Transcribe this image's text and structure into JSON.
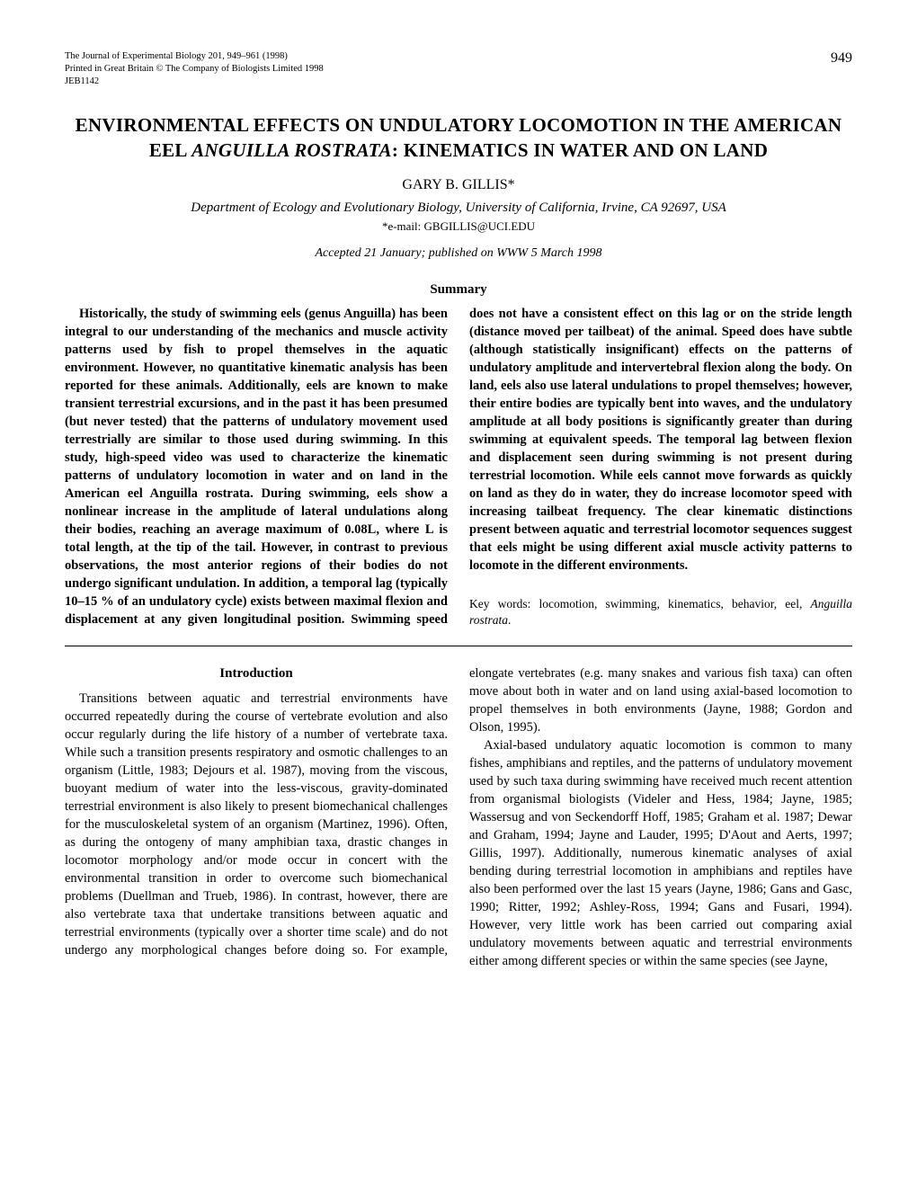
{
  "journal_header": {
    "line1": "The Journal of Experimental Biology 201, 949–961 (1998)",
    "line2": "Printed in Great Britain © The Company of Biologists Limited 1998",
    "line3": "JEB1142"
  },
  "page_number": "949",
  "title_line1": "ENVIRONMENTAL EFFECTS ON UNDULATORY LOCOMOTION IN THE AMERICAN",
  "title_line2_prefix": "EEL ",
  "title_line2_italic": "ANGUILLA ROSTRATA",
  "title_line2_suffix": ": KINEMATICS IN WATER AND ON LAND",
  "author": "GARY B. GILLIS*",
  "affiliation": "Department of Ecology and Evolutionary Biology, University of California, Irvine, CA 92697, USA",
  "email": "*e-mail: GBGILLIS@UCI.EDU",
  "accepted": "Accepted 21 January; published on WWW 5 March 1998",
  "summary_heading": "Summary",
  "summary_para": "Historically, the study of swimming eels (genus Anguilla) has been integral to our understanding of the mechanics and muscle activity patterns used by fish to propel themselves in the aquatic environment. However, no quantitative kinematic analysis has been reported for these animals. Additionally, eels are known to make transient terrestrial excursions, and in the past it has been presumed (but never tested) that the patterns of undulatory movement used terrestrially are similar to those used during swimming. In this study, high-speed video was used to characterize the kinematic patterns of undulatory locomotion in water and on land in the American eel Anguilla rostrata. During swimming, eels show a nonlinear increase in the amplitude of lateral undulations along their bodies, reaching an average maximum of 0.08L, where L is total length, at the tip of the tail. However, in contrast to previous observations, the most anterior regions of their bodies do not undergo significant undulation. In addition, a temporal lag (typically 10–15 % of an undulatory cycle) exists between maximal flexion and displacement at any given longitudinal position. Swimming speed does not have a consistent effect on this lag or on the stride length (distance moved per tailbeat) of the animal. Speed does have subtle (although statistically insignificant) effects on the patterns of undulatory amplitude and intervertebral flexion along the body. On land, eels also use lateral undulations to propel themselves; however, their entire bodies are typically bent into waves, and the undulatory amplitude at all body positions is significantly greater than during swimming at equivalent speeds. The temporal lag between flexion and displacement seen during swimming is not present during terrestrial locomotion. While eels cannot move forwards as quickly on land as they do in water, they do increase locomotor speed with increasing tailbeat frequency. The clear kinematic distinctions present between aquatic and terrestrial locomotor sequences suggest that eels might be using different axial muscle activity patterns to locomote in the different environments.",
  "keywords_prefix": "Key words: locomotion, swimming, kinematics, behavior, eel, ",
  "keywords_italic": "Anguilla rostrata",
  "keywords_suffix": ".",
  "intro_heading": "Introduction",
  "intro_p1": "Transitions between aquatic and terrestrial environments have occurred repeatedly during the course of vertebrate evolution and also occur regularly during the life history of a number of vertebrate taxa. While such a transition presents respiratory and osmotic challenges to an organism (Little, 1983; Dejours et al. 1987), moving from the viscous, buoyant medium of water into the less-viscous, gravity-dominated terrestrial environment is also likely to present biomechanical challenges for the musculoskeletal system of an organism (Martinez, 1996). Often, as during the ontogeny of many amphibian taxa, drastic changes in locomotor morphology and/or mode occur in concert with the environmental transition in order to overcome such biomechanical problems (Duellman and Trueb, 1986). In contrast, however, there are also vertebrate taxa that undertake transitions between aquatic and terrestrial environments (typically over a shorter time scale) and do not undergo any morphological changes before doing so. For example, elongate vertebrates (e.g. many snakes and various fish taxa) can often move about both in water and on land using axial-based locomotion to propel themselves in both environments (Jayne, 1988; Gordon and Olson, 1995).",
  "intro_p2": "Axial-based undulatory aquatic locomotion is common to many fishes, amphibians and reptiles, and the patterns of undulatory movement used by such taxa during swimming have received much recent attention from organismal biologists (Videler and Hess, 1984; Jayne, 1985; Wassersug and von Seckendorff Hoff, 1985; Graham et al. 1987; Dewar and Graham, 1994; Jayne and Lauder, 1995; D'Aout and Aerts, 1997; Gillis, 1997). Additionally, numerous kinematic analyses of axial bending during terrestrial locomotion in amphibians and reptiles have also been performed over the last 15 years (Jayne, 1986; Gans and Gasc, 1990; Ritter, 1992; Ashley-Ross, 1994; Gans and Fusari, 1994). However, very little work has been carried out comparing axial undulatory movements between aquatic and terrestrial environments either among different species or within the same species (see Jayne,"
}
